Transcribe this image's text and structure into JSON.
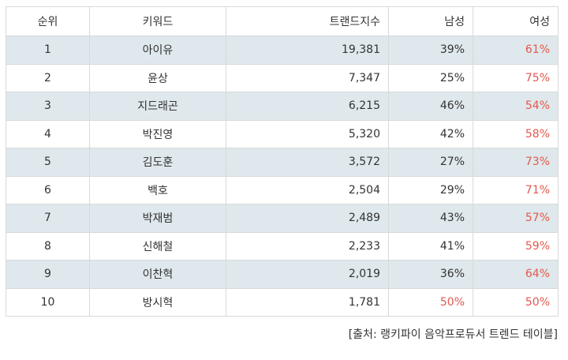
{
  "table": {
    "headers": [
      "순위",
      "키워드",
      "트랜드지수",
      "남성",
      "여성"
    ],
    "rows": [
      {
        "rank": "1",
        "keyword": "아이유",
        "index": "19,381",
        "male": "39%",
        "female": "61%",
        "male_red": false,
        "female_red": true
      },
      {
        "rank": "2",
        "keyword": "윤상",
        "index": "7,347",
        "male": "25%",
        "female": "75%",
        "male_red": false,
        "female_red": true
      },
      {
        "rank": "3",
        "keyword": "지드래곤",
        "index": "6,215",
        "male": "46%",
        "female": "54%",
        "male_red": false,
        "female_red": true
      },
      {
        "rank": "4",
        "keyword": "박진영",
        "index": "5,320",
        "male": "42%",
        "female": "58%",
        "male_red": false,
        "female_red": true
      },
      {
        "rank": "5",
        "keyword": "김도훈",
        "index": "3,572",
        "male": "27%",
        "female": "73%",
        "male_red": false,
        "female_red": true
      },
      {
        "rank": "6",
        "keyword": "백호",
        "index": "2,504",
        "male": "29%",
        "female": "71%",
        "male_red": false,
        "female_red": true
      },
      {
        "rank": "7",
        "keyword": "박재범",
        "index": "2,489",
        "male": "43%",
        "female": "57%",
        "male_red": false,
        "female_red": true
      },
      {
        "rank": "8",
        "keyword": "신해철",
        "index": "2,233",
        "male": "41%",
        "female": "59%",
        "male_red": false,
        "female_red": true
      },
      {
        "rank": "9",
        "keyword": "이찬혁",
        "index": "2,019",
        "male": "36%",
        "female": "64%",
        "male_red": false,
        "female_red": true
      },
      {
        "rank": "10",
        "keyword": "방시혁",
        "index": "1,781",
        "male": "50%",
        "female": "50%",
        "male_red": true,
        "female_red": true
      }
    ]
  },
  "caption": "[출처: 랭키파이 음악프로듀서 트렌드 테이블]",
  "colors": {
    "highlight": "#e05a4f",
    "stripe": "#dfe8ec",
    "border": "#d9d9d9"
  }
}
